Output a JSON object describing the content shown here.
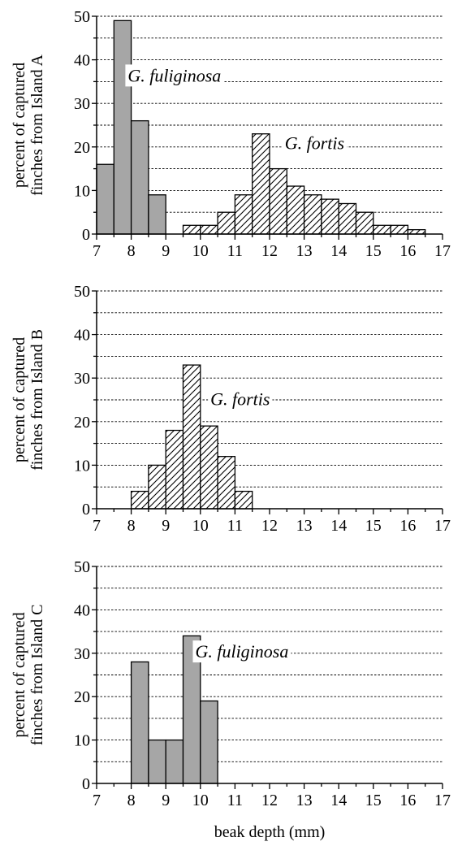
{
  "colors": {
    "fuliginosa_fill": "#a6a6a6",
    "fortis_fill": "#ffffff",
    "fortis_hatch": "#000000",
    "axis": "#000000",
    "grid": "#000000"
  },
  "xlabel": "beak depth (mm)",
  "chart_data": [
    {
      "type": "bar",
      "ylabel_lines": [
        "percent of captured",
        "finches from Island A"
      ],
      "xlim": [
        7,
        17
      ],
      "ylim": [
        0,
        50
      ],
      "grid": "dashed horizontal every 5",
      "x_ticks": [
        "7",
        "8",
        "9",
        "10",
        "11",
        "12",
        "13",
        "14",
        "15",
        "16",
        "17"
      ],
      "y_ticks": [
        "0",
        "10",
        "20",
        "30",
        "40",
        "50"
      ],
      "series": [
        {
          "name": "G. fuliginosa",
          "bin_width": 0.5,
          "fill": "solid",
          "bins": [
            {
              "x": 7.25,
              "value": 16
            },
            {
              "x": 7.75,
              "value": 49
            },
            {
              "x": 8.25,
              "value": 26
            },
            {
              "x": 8.75,
              "value": 9
            }
          ],
          "label_at": {
            "x": 9.25,
            "y": 35
          }
        },
        {
          "name": "G. fortis",
          "bin_width": 0.5,
          "fill": "hatched",
          "bins": [
            {
              "x": 9.75,
              "value": 2
            },
            {
              "x": 10.25,
              "value": 2
            },
            {
              "x": 10.75,
              "value": 5
            },
            {
              "x": 11.25,
              "value": 9
            },
            {
              "x": 11.75,
              "value": 23
            },
            {
              "x": 12.25,
              "value": 15
            },
            {
              "x": 12.75,
              "value": 11
            },
            {
              "x": 13.25,
              "value": 9
            },
            {
              "x": 13.75,
              "value": 8
            },
            {
              "x": 14.25,
              "value": 7
            },
            {
              "x": 14.75,
              "value": 5
            },
            {
              "x": 15.25,
              "value": 2
            },
            {
              "x": 15.75,
              "value": 2
            },
            {
              "x": 16.25,
              "value": 1
            }
          ],
          "label_at": {
            "x": 13.3,
            "y": 19.5
          }
        }
      ]
    },
    {
      "type": "bar",
      "ylabel_lines": [
        "percent of captured",
        "finches from Island B"
      ],
      "xlim": [
        7,
        17
      ],
      "ylim": [
        0,
        50
      ],
      "grid": "dashed horizontal every 5",
      "x_ticks": [
        "7",
        "8",
        "9",
        "10",
        "11",
        "12",
        "13",
        "14",
        "15",
        "16",
        "17"
      ],
      "y_ticks": [
        "0",
        "10",
        "20",
        "30",
        "40",
        "50"
      ],
      "series": [
        {
          "name": "G. fortis",
          "bin_width": 0.5,
          "fill": "hatched",
          "bins": [
            {
              "x": 8.25,
              "value": 4
            },
            {
              "x": 8.75,
              "value": 10
            },
            {
              "x": 9.25,
              "value": 18
            },
            {
              "x": 9.75,
              "value": 33
            },
            {
              "x": 10.25,
              "value": 19
            },
            {
              "x": 10.75,
              "value": 12
            },
            {
              "x": 11.25,
              "value": 4
            }
          ],
          "label_at": {
            "x": 11.15,
            "y": 23.8
          }
        }
      ]
    },
    {
      "type": "bar",
      "ylabel_lines": [
        "percent of captured",
        "finches from Island C"
      ],
      "xlim": [
        7,
        17
      ],
      "ylim": [
        0,
        50
      ],
      "grid": "dashed horizontal every 5",
      "x_ticks": [
        "7",
        "8",
        "9",
        "10",
        "11",
        "12",
        "13",
        "14",
        "15",
        "16",
        "17"
      ],
      "y_ticks": [
        "0",
        "10",
        "20",
        "30",
        "40",
        "50"
      ],
      "series": [
        {
          "name": "G. fuliginosa",
          "bin_width": 0.5,
          "fill": "solid",
          "bins": [
            {
              "x": 8.25,
              "value": 28
            },
            {
              "x": 8.75,
              "value": 10
            },
            {
              "x": 9.25,
              "value": 10
            },
            {
              "x": 9.75,
              "value": 34
            },
            {
              "x": 10.25,
              "value": 19
            }
          ],
          "label_at": {
            "x": 11.2,
            "y": 29
          }
        }
      ]
    }
  ]
}
